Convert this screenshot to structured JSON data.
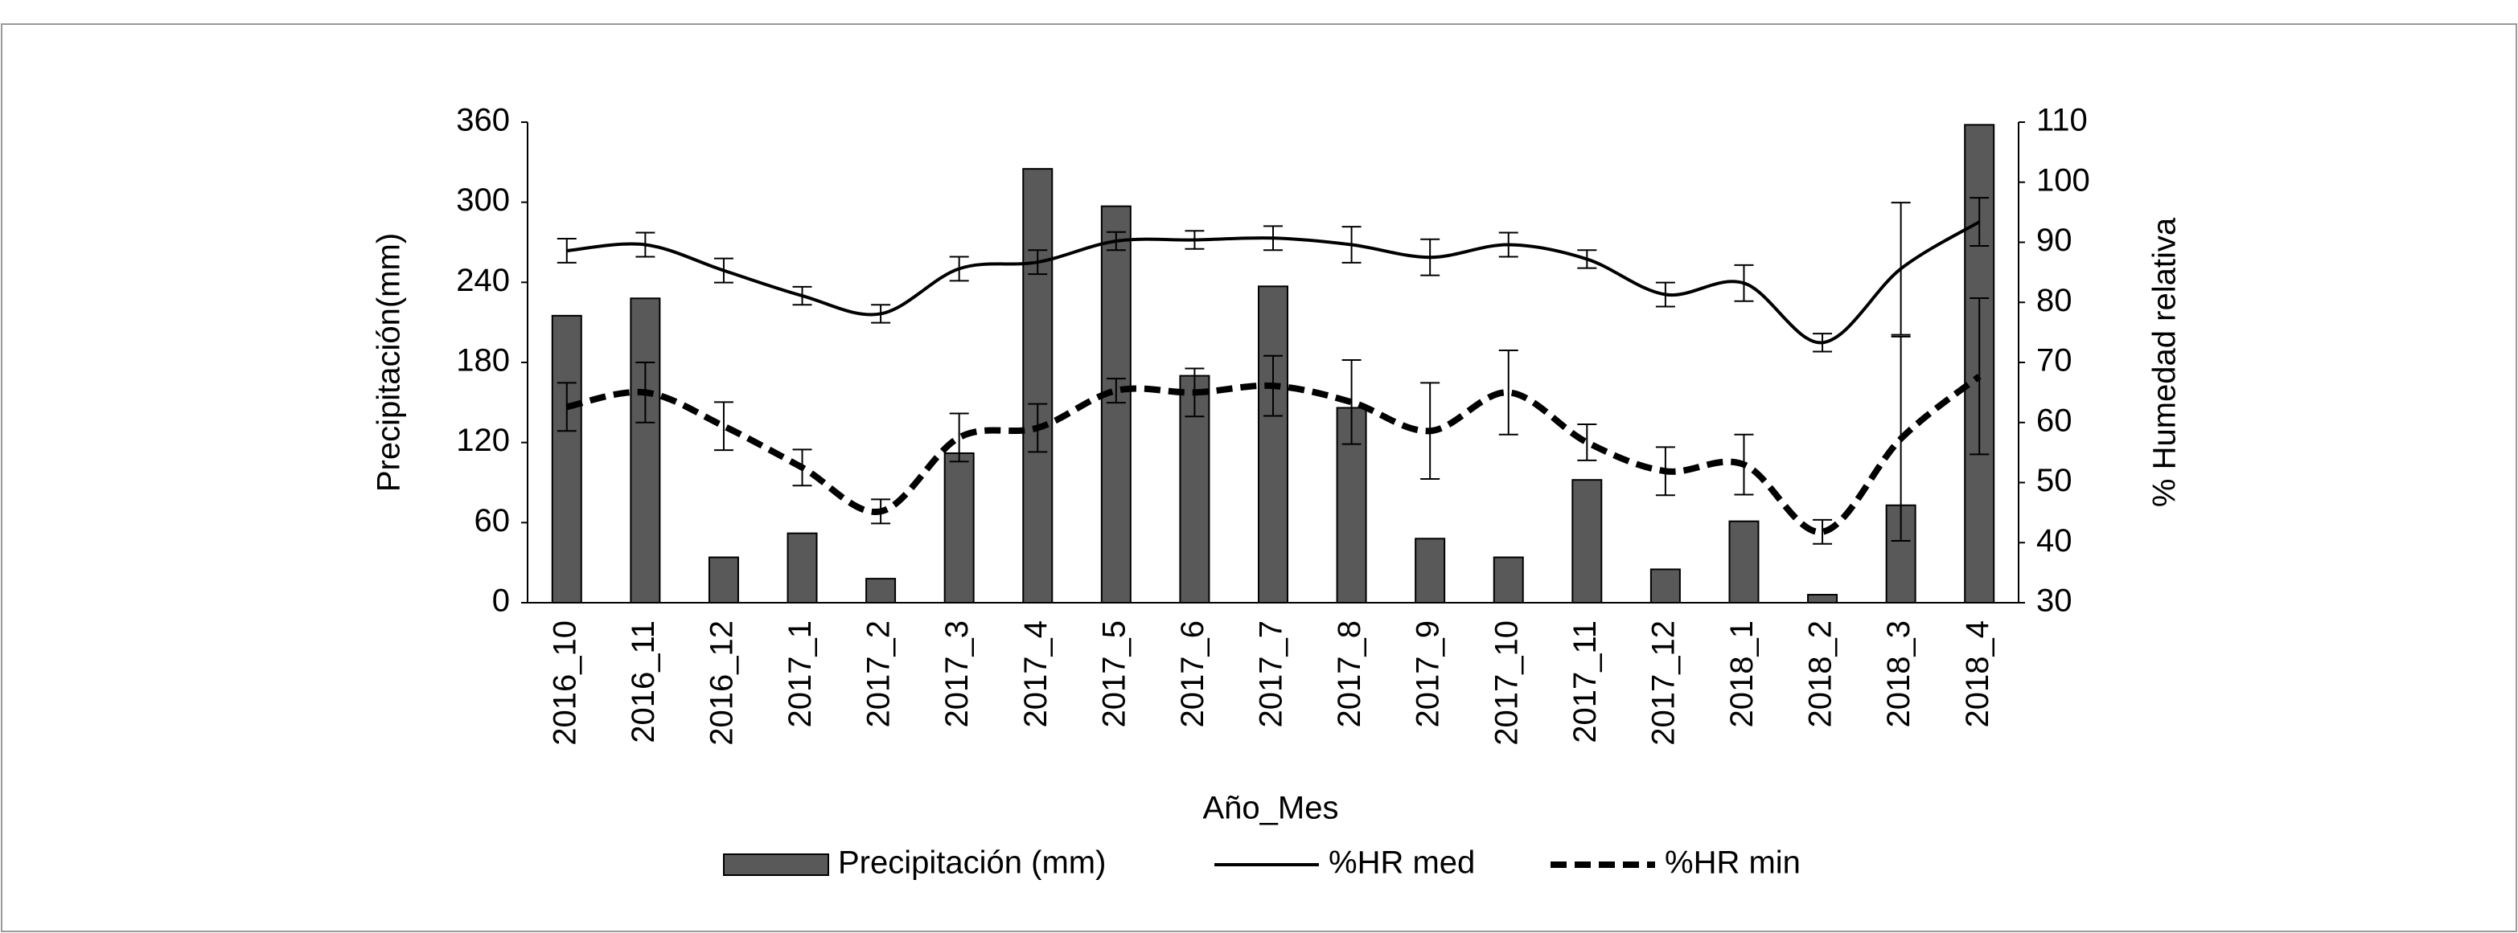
{
  "chart_data": {
    "type": "bar_line",
    "x_label": "Año_Mes",
    "y_label": "Precipitación(mm)",
    "y2_label": "% Humedad relativa",
    "categories": [
      "2016_10",
      "2016_11",
      "2016_12",
      "2017_1",
      "2017_2",
      "2017_3",
      "2017_4",
      "2017_5",
      "2017_6",
      "2017_7",
      "2017_8",
      "2017_9",
      "2017_10",
      "2017_11",
      "2017_12",
      "2018_1",
      "2018_2",
      "2018_3",
      "2018_4"
    ],
    "series": [
      {
        "name": "Precipitación  (mm)",
        "kind": "bar",
        "color": "#595959",
        "values": [
          215,
          228,
          34,
          52,
          18,
          112,
          325,
          297,
          170,
          237,
          146,
          48,
          34,
          92,
          25,
          61,
          6,
          73,
          358
        ]
      },
      {
        "name": "%HR med",
        "kind": "line",
        "axis": "y2",
        "color": "#000000",
        "dash": "solid",
        "values": [
          88.6,
          89.6,
          85.3,
          81.1,
          78.1,
          85.6,
          86.7,
          90.2,
          90.4,
          90.7,
          89.6,
          87.5,
          89.6,
          87.2,
          81.3,
          83.2,
          73.3,
          85.6,
          93.4
        ],
        "errors": [
          2,
          2,
          2,
          1.5,
          1.5,
          2,
          2,
          1.5,
          1.5,
          2,
          3,
          3,
          2,
          1.5,
          2,
          3,
          1.5,
          11,
          4
        ]
      },
      {
        "name": "%HR min",
        "kind": "line",
        "axis": "y2",
        "color": "#000000",
        "dash": "dashed",
        "values": [
          62.6,
          65,
          59.4,
          52.5,
          45.2,
          57.5,
          59.1,
          65.3,
          65,
          66.1,
          63.4,
          58.6,
          65,
          56.7,
          51.9,
          53,
          41.8,
          57.3,
          67.7
        ],
        "errors": [
          4,
          5,
          4,
          3,
          2,
          4,
          4,
          2,
          4,
          5,
          7,
          8,
          7,
          3,
          4,
          5,
          2,
          17,
          13
        ]
      }
    ],
    "ylim": [
      0,
      360
    ],
    "yticks": [
      0,
      60,
      120,
      180,
      240,
      300,
      360
    ],
    "y2lim": [
      30,
      110
    ],
    "y2ticks": [
      30,
      40,
      50,
      60,
      70,
      80,
      90,
      100,
      110
    ],
    "legend": "bottom"
  }
}
